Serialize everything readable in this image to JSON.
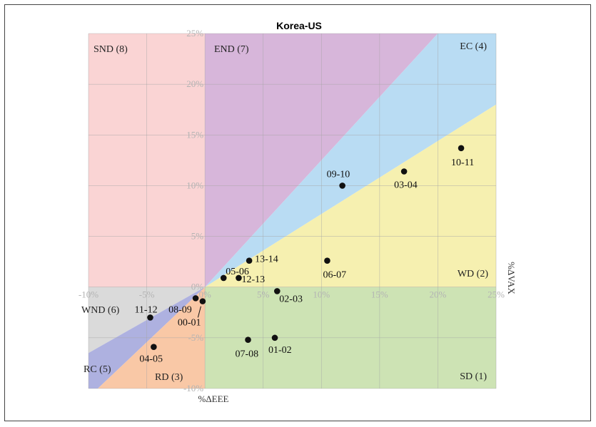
{
  "chart_data": {
    "type": "scatter",
    "title": "Korea-US",
    "xlabel": "%ΔEEE",
    "ylabel": "%ΔVAX",
    "xlim": [
      -10,
      25
    ],
    "ylim": [
      -10,
      25
    ],
    "x_ticks": [
      -10,
      -5,
      0,
      5,
      10,
      15,
      20,
      25
    ],
    "y_ticks": [
      -10,
      -5,
      0,
      5,
      10,
      15,
      20,
      25
    ],
    "x_tick_labels": [
      "-10%",
      "-5%",
      "0%",
      "5%",
      "10%",
      "15%",
      "20%",
      "25%"
    ],
    "y_tick_labels": [
      "-10%",
      "-5%",
      "0%",
      "5%",
      "10%",
      "15%",
      "20%",
      "25%"
    ],
    "grid": true,
    "colors": {
      "SND": "#fad4d4",
      "END": "#d7b6da",
      "EC": "#b9dcf3",
      "WD": "#f6f0b0",
      "SD": "#cde3b4",
      "WND": "#dadada",
      "RC": "#aeb1e0",
      "RD": "#f9c8a6",
      "point": "#111111"
    },
    "regions": [
      {
        "id": "SND",
        "label": "SND (8)"
      },
      {
        "id": "END",
        "label": "END (7)"
      },
      {
        "id": "EC",
        "label": "EC (4)"
      },
      {
        "id": "WD",
        "label": "WD (2)"
      },
      {
        "id": "SD",
        "label": "SD (1)"
      },
      {
        "id": "WND",
        "label": "WND (6)"
      },
      {
        "id": "RC",
        "label": "RC (5)"
      },
      {
        "id": "RD",
        "label": "RD (3)"
      }
    ],
    "points": [
      {
        "label": "10-11",
        "x": 22.0,
        "y": 13.7
      },
      {
        "label": "03-04",
        "x": 17.1,
        "y": 11.4
      },
      {
        "label": "09-10",
        "x": 11.8,
        "y": 10.0
      },
      {
        "label": "06-07",
        "x": 10.5,
        "y": 2.6
      },
      {
        "label": "13-14",
        "x": 3.8,
        "y": 2.6
      },
      {
        "label": "05-06",
        "x": 1.6,
        "y": 0.9
      },
      {
        "label": "12-13",
        "x": 2.9,
        "y": 0.9
      },
      {
        "label": "02-03",
        "x": 6.2,
        "y": -0.4
      },
      {
        "label": "08-09",
        "x": -0.8,
        "y": -1.1
      },
      {
        "label": "00-01",
        "x": -0.2,
        "y": -1.4
      },
      {
        "label": "11-12",
        "x": -4.7,
        "y": -3.0
      },
      {
        "label": "04-05",
        "x": -4.4,
        "y": -5.9
      },
      {
        "label": "07-08",
        "x": 3.7,
        "y": -5.2
      },
      {
        "label": "01-02",
        "x": 6.0,
        "y": -5.0
      }
    ]
  }
}
